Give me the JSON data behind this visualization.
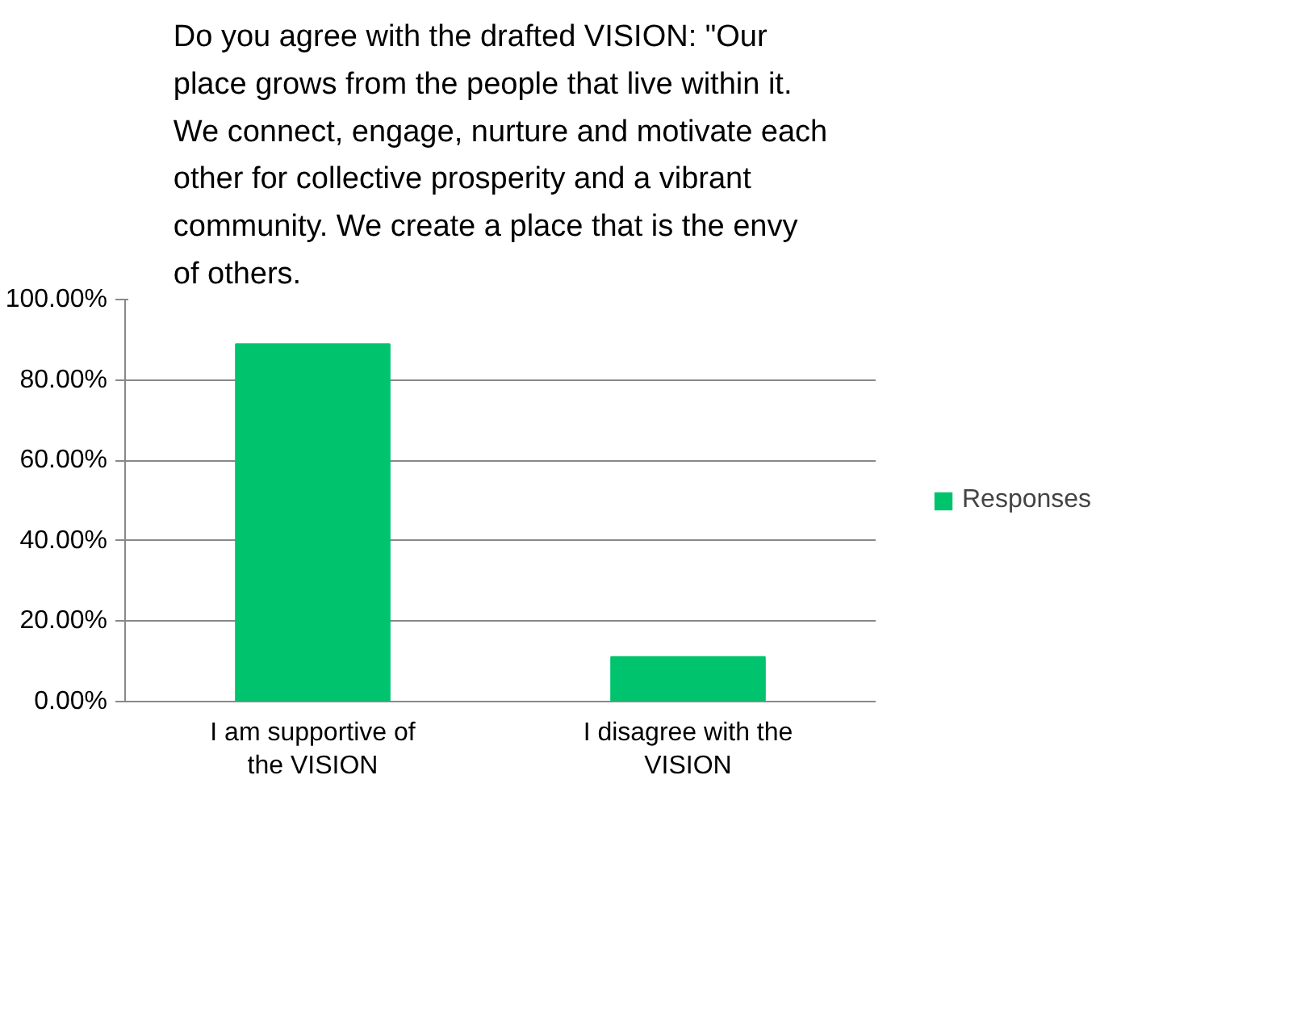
{
  "chart_data": {
    "type": "bar",
    "title": "Do you agree with the drafted VISION: \"Our\nplace grows from the people that live within it.\nWe connect, engage, nurture and motivate each\nother for collective prosperity and a vibrant\ncommunity.  We create a place that is the envy\nof others.",
    "categories": [
      "I am supportive of\nthe VISION",
      "I disagree with the\nVISION"
    ],
    "series": [
      {
        "name": "Responses",
        "color": "#00c36e",
        "values": [
          88.9,
          11.1
        ]
      }
    ],
    "ylim": [
      0,
      100
    ],
    "yticks": [
      {
        "value": 0,
        "label": "0.00%"
      },
      {
        "value": 20,
        "label": "20.00%"
      },
      {
        "value": 40,
        "label": "40.00%"
      },
      {
        "value": 60,
        "label": "60.00%"
      },
      {
        "value": 80,
        "label": "80.00%"
      },
      {
        "value": 100,
        "label": "100.00%"
      }
    ],
    "grid": "y",
    "legend": "right"
  }
}
